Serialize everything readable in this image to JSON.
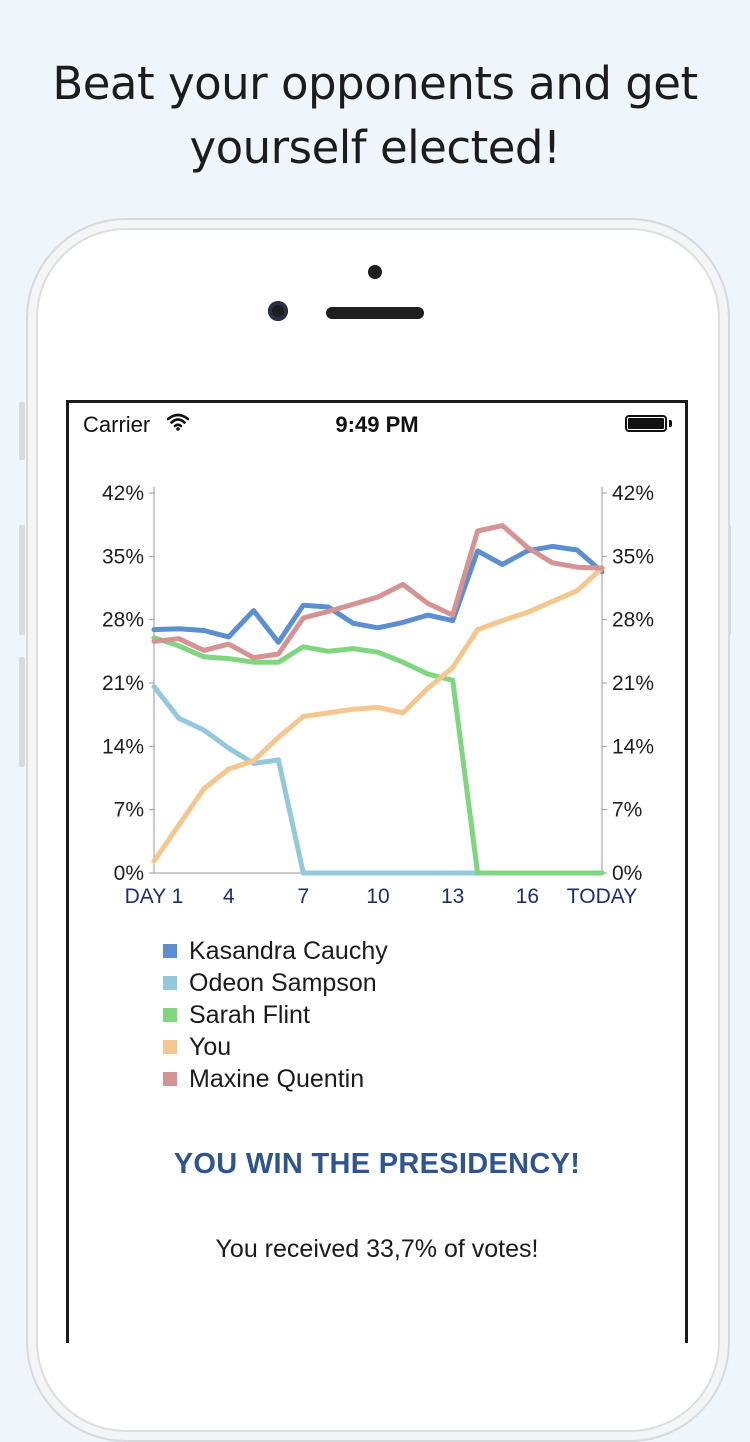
{
  "headline": {
    "line1": "Beat your opponents and get",
    "line2": "yourself elected!"
  },
  "status_bar": {
    "carrier": "Carrier",
    "time": "9:49 PM",
    "wifi_icon": "wifi-icon",
    "battery_icon": "battery-icon"
  },
  "chart_data": {
    "type": "line",
    "title": "",
    "xlabel": "",
    "ylabel": "",
    "x": [
      1,
      2,
      3,
      4,
      5,
      6,
      7,
      8,
      9,
      10,
      11,
      12,
      13,
      14,
      15,
      16,
      17,
      18,
      19
    ],
    "x_tick_labels": [
      "DAY 1",
      "4",
      "7",
      "10",
      "13",
      "16",
      "TODAY"
    ],
    "x_tick_positions": [
      1,
      4,
      7,
      10,
      13,
      16,
      19
    ],
    "y_tick_labels": [
      "42%",
      "35%",
      "28%",
      "21%",
      "14%",
      "7%",
      "0%"
    ],
    "y_tick_values": [
      42,
      35,
      28,
      21,
      14,
      7,
      0
    ],
    "ylim": [
      0,
      42
    ],
    "grid": false,
    "right_axis": true,
    "series": [
      {
        "name": "Kasandra Cauchy",
        "color": "#5b8fd0",
        "values": [
          26.9,
          27,
          26.8,
          26.1,
          29,
          25.5,
          29.6,
          29.4,
          27.6,
          27.1,
          27.7,
          28.5,
          27.9,
          35.6,
          34.1,
          35.6,
          36.1,
          35.7,
          33.3
        ]
      },
      {
        "name": "Odeon Sampson",
        "color": "#94c8dc",
        "values": [
          20.6,
          17.1,
          15.8,
          13.8,
          12.1,
          12.5,
          0,
          0,
          0,
          0,
          0,
          0,
          0,
          0,
          0,
          0,
          0,
          0,
          0
        ]
      },
      {
        "name": "Sarah Flint",
        "color": "#7ed67f",
        "values": [
          26,
          25.1,
          23.9,
          23.7,
          23.3,
          23.3,
          25,
          24.5,
          24.8,
          24.4,
          23.3,
          22,
          21.3,
          0,
          0,
          0,
          0,
          0,
          0
        ]
      },
      {
        "name": "You",
        "color": "#f5c78f",
        "values": [
          1.3,
          5.3,
          9.3,
          11.5,
          12.4,
          15,
          17.3,
          17.7,
          18.1,
          18.3,
          17.7,
          20.4,
          22.7,
          26.9,
          27.9,
          28.8,
          30,
          31.2,
          33.7
        ]
      },
      {
        "name": "Maxine Quentin",
        "color": "#d69393",
        "values": [
          25.6,
          25.9,
          24.6,
          25.3,
          23.8,
          24.2,
          28.2,
          28.9,
          29.7,
          30.5,
          31.9,
          29.8,
          28.5,
          37.8,
          38.4,
          36,
          34.3,
          33.8,
          33.7
        ]
      }
    ]
  },
  "result": {
    "title": "YOU WIN THE PRESIDENCY!",
    "message": "You received 33,7% of votes!"
  }
}
